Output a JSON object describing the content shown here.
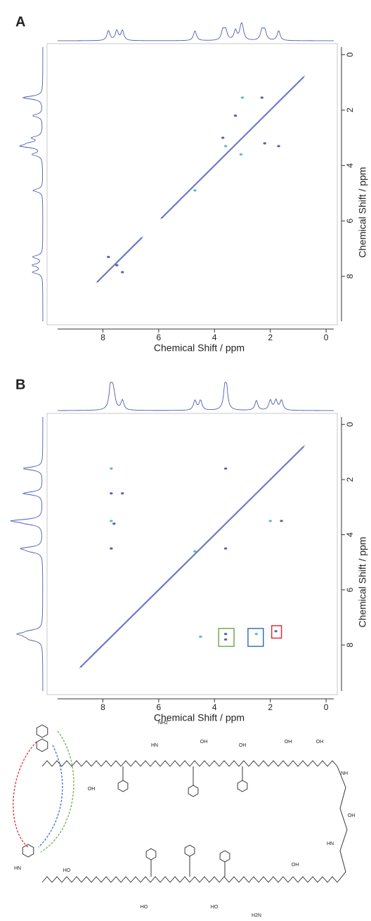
{
  "chart_data": [
    {
      "type": "contour",
      "panel_label": "A",
      "x_label": "Chemical Shift / ppm",
      "y_label": "Chemical Shift / ppm",
      "xlim": [
        10,
        -0.4
      ],
      "ylim": [
        -0.4,
        9.75
      ],
      "xticks": [
        8,
        6,
        4,
        2,
        0
      ],
      "yticks": [
        0,
        2,
        4,
        6,
        8
      ],
      "color": "#3b4aa0",
      "diagonal_segments": [
        [
          0.8,
          5.9
        ],
        [
          6.6,
          8.2
        ]
      ],
      "peaks": {
        "x": [
          3.0,
          2.3,
          3.7,
          3.05,
          3.25,
          2.2,
          3.6,
          7.3,
          7.8,
          4.7,
          1.7,
          7.5
        ],
        "y": [
          1.55,
          1.55,
          3.0,
          3.6,
          2.2,
          3.2,
          3.3,
          7.85,
          7.3,
          4.9,
          3.3,
          7.6
        ]
      }
    },
    {
      "type": "contour",
      "panel_label": "B",
      "x_label": "Chemical Shift / ppm",
      "y_label": "Chemical Shift / ppm",
      "xlim": [
        10,
        -0.4
      ],
      "ylim": [
        -0.4,
        9.8
      ],
      "xticks": [
        8,
        6,
        4,
        2,
        0
      ],
      "yticks": [
        0,
        2,
        4,
        6,
        8
      ],
      "color": "#3b4aa0",
      "diagonal_segments": [
        [
          0.8,
          8.8
        ]
      ],
      "peaks": {
        "x": [
          7.7,
          7.7,
          7.3,
          7.7,
          7.6,
          7.7,
          4.5,
          3.6,
          3.6,
          2.5,
          1.8,
          3.6,
          2.0,
          1.6,
          3.6,
          4.7
        ],
        "y": [
          1.6,
          2.5,
          2.5,
          3.5,
          3.6,
          4.5,
          7.7,
          7.6,
          7.8,
          7.6,
          7.5,
          1.6,
          3.5,
          3.5,
          4.5,
          4.6
        ]
      },
      "highlight_boxes": [
        {
          "x": [
            3.85,
            3.3
          ],
          "y": [
            7.4,
            8.05
          ],
          "color": "#6ab04c"
        },
        {
          "x": [
            2.8,
            2.25
          ],
          "y": [
            7.4,
            8.05
          ],
          "color": "#3a6fc4"
        },
        {
          "x": [
            1.95,
            1.6
          ],
          "y": [
            7.3,
            7.75
          ],
          "color": "#e0303a"
        }
      ]
    }
  ],
  "structure": {
    "labels": [
      "NH2",
      "HN",
      "NH",
      "OH",
      "OH",
      "OH",
      "OH",
      "OH",
      "HO",
      "HO",
      "OH",
      "H2N",
      "HN",
      "OH",
      "HO",
      "HN"
    ]
  }
}
